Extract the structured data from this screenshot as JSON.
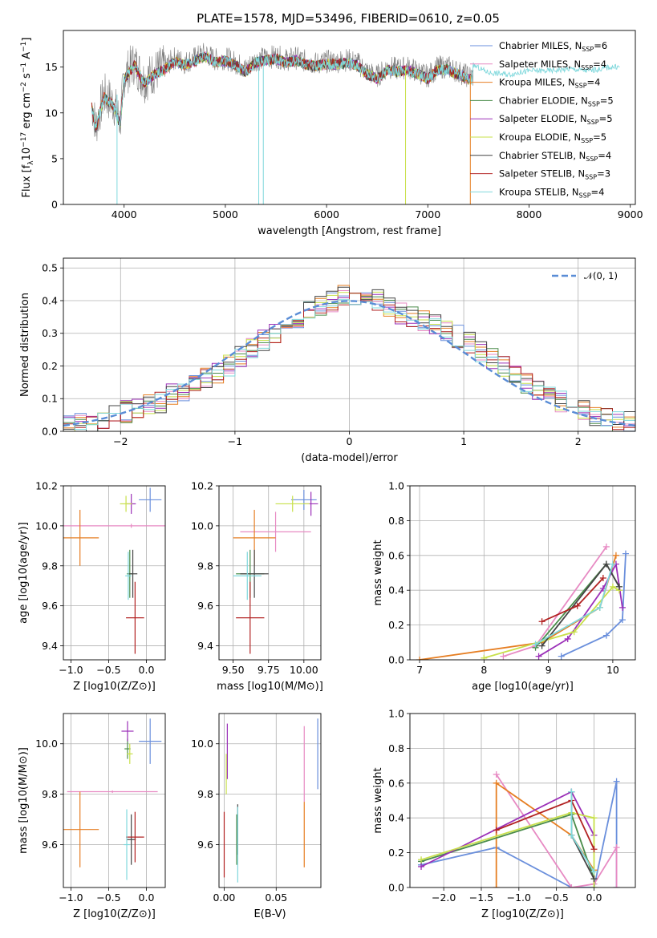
{
  "figure": {
    "title": "PLATE=1578, MJD=53496, FIBERID=0610, z=0.05"
  },
  "models": [
    {
      "name": "Chabrier MILES",
      "nssp": "6",
      "color": "#6a8fdc"
    },
    {
      "name": "Salpeter MILES",
      "nssp": "4",
      "color": "#e78ac3"
    },
    {
      "name": "Kroupa MILES",
      "nssp": "4",
      "color": "#e67e22"
    },
    {
      "name": "Chabrier ELODIE",
      "nssp": "5",
      "color": "#4a8c4a"
    },
    {
      "name": "Salpeter ELODIE",
      "nssp": "5",
      "color": "#9b30b8"
    },
    {
      "name": "Kroupa ELODIE",
      "nssp": "5",
      "color": "#c8e04a"
    },
    {
      "name": "Chabrier STELIB",
      "nssp": "4",
      "color": "#444444"
    },
    {
      "name": "Salpeter STELIB",
      "nssp": "3",
      "color": "#b22222"
    },
    {
      "name": "Kroupa STELIB",
      "nssp": "4",
      "color": "#7fd8dc"
    }
  ],
  "legend_ssp_prefix": "N",
  "legend_ssp_sub": "SSP",
  "chart_data": [
    {
      "id": "spectrum",
      "type": "line",
      "xlabel": "wavelength [Angstrom, rest frame]",
      "ylabel_main": "Flux [f",
      "ylabel_sub": "λ",
      "ylabel_rest": "10",
      "ylabel_exp": "−17",
      "ylabel_units": " erg cm",
      "ylabel_exp2": "−2",
      "ylabel_s": " s",
      "ylabel_exp3": "−1",
      "ylabel_A": " A",
      "ylabel_exp4": "−1",
      "ylabel_end": "]",
      "xlim": [
        3400,
        9050
      ],
      "ylim": [
        0,
        19
      ],
      "xticks": [
        4000,
        5000,
        6000,
        7000,
        8000,
        9000
      ],
      "yticks": [
        0,
        5,
        10,
        15
      ],
      "data_color": "#808080",
      "x": [
        3680,
        3720,
        3800,
        3900,
        3960,
        4000,
        4100,
        4200,
        4300,
        4400,
        4500,
        4600,
        4700,
        4800,
        4900,
        5000,
        5100,
        5200,
        5300,
        5400,
        5500,
        5600,
        5700,
        5800,
        5900,
        6000,
        6100,
        6200,
        6300,
        6400,
        6500,
        6600,
        6700,
        6800,
        6900,
        7000,
        7100,
        7200,
        7300,
        7400
      ],
      "y": [
        11.0,
        8.5,
        12.0,
        11.0,
        9.0,
        14.0,
        15.5,
        13.5,
        14.5,
        15.0,
        16.0,
        15.5,
        16.0,
        16.5,
        15.8,
        16.0,
        15.5,
        14.8,
        15.8,
        16.0,
        16.2,
        15.8,
        16.0,
        15.6,
        15.4,
        15.6,
        15.6,
        15.8,
        15.5,
        14.5,
        14.0,
        15.0,
        14.8,
        15.0,
        14.5,
        14.0,
        15.0,
        15.0,
        14.5,
        14.0
      ],
      "model_x": [
        7450,
        7600,
        7800,
        8000,
        8200,
        8400,
        8600,
        8800
      ],
      "model_y": [
        15.2,
        14.4,
        14.2,
        14.6,
        14.6,
        14.8,
        14.6,
        15.0
      ]
    },
    {
      "id": "residuals",
      "type": "step",
      "xlabel": "(data-model)/error",
      "ylabel": "Normed distribution",
      "xlim": [
        -2.5,
        2.5
      ],
      "ylim": [
        0,
        0.53
      ],
      "xticks": [
        -2,
        -1,
        0,
        1,
        2
      ],
      "yticks": [
        0.0,
        0.1,
        0.2,
        0.3,
        0.4,
        0.5
      ],
      "bin_edges": [
        -2.5,
        -2.4,
        -2.3,
        -2.2,
        -2.1,
        -2.0,
        -1.9,
        -1.8,
        -1.7,
        -1.6,
        -1.5,
        -1.4,
        -1.3,
        -1.2,
        -1.1,
        -1.0,
        -0.9,
        -0.8,
        -0.7,
        -0.6,
        -0.5,
        -0.4,
        -0.3,
        -0.2,
        -0.1,
        0.0,
        0.1,
        0.2,
        0.3,
        0.4,
        0.5,
        0.6,
        0.7,
        0.8,
        0.9,
        1.0,
        1.1,
        1.2,
        1.3,
        1.4,
        1.5,
        1.6,
        1.7,
        1.8,
        1.9,
        2.0,
        2.1,
        2.2,
        2.3,
        2.4,
        2.5
      ],
      "base_values": [
        0.02,
        0.025,
        0.03,
        0.04,
        0.05,
        0.06,
        0.065,
        0.08,
        0.09,
        0.11,
        0.12,
        0.14,
        0.16,
        0.18,
        0.2,
        0.23,
        0.26,
        0.28,
        0.3,
        0.33,
        0.35,
        0.37,
        0.39,
        0.4,
        0.42,
        0.41,
        0.42,
        0.4,
        0.38,
        0.36,
        0.35,
        0.34,
        0.33,
        0.31,
        0.29,
        0.27,
        0.24,
        0.22,
        0.2,
        0.17,
        0.15,
        0.13,
        0.11,
        0.09,
        0.08,
        0.06,
        0.05,
        0.04,
        0.03,
        0.03
      ],
      "gaussian_label": "𝒩(0, 1)",
      "gaussian_color": "#5a8dd6"
    },
    {
      "id": "age-vs-Z",
      "type": "errorbar",
      "xlabel": "Z [log10(Z/Z⊙)]",
      "ylabel": "age  [log10(age/yr)]",
      "xlim": [
        -1.1,
        0.25
      ],
      "ylim": [
        9.33,
        10.2
      ],
      "xticks": [
        -1.0,
        -0.5,
        0.0
      ],
      "yticks": [
        9.4,
        9.6,
        9.8,
        10.0,
        10.2
      ],
      "points": [
        {
          "model": 0,
          "x": 0.05,
          "y": 10.13,
          "xerr": 0.15,
          "yerr": 0.06
        },
        {
          "model": 1,
          "x": -0.2,
          "y": 10.0,
          "xerr": 1.0,
          "yerr": 0.01
        },
        {
          "model": 2,
          "x": -0.88,
          "y": 9.94,
          "xerr": 0.25,
          "yerr": 0.14
        },
        {
          "model": 3,
          "x": -0.22,
          "y": 9.76,
          "xerr": 0.04,
          "yerr": 0.12
        },
        {
          "model": 4,
          "x": -0.2,
          "y": 10.11,
          "xerr": 0.06,
          "yerr": 0.05
        },
        {
          "model": 5,
          "x": -0.27,
          "y": 10.11,
          "xerr": 0.08,
          "yerr": 0.04
        },
        {
          "model": 6,
          "x": -0.18,
          "y": 9.76,
          "xerr": 0.06,
          "yerr": 0.12
        },
        {
          "model": 7,
          "x": -0.15,
          "y": 9.54,
          "xerr": 0.12,
          "yerr": 0.18
        },
        {
          "model": 8,
          "x": -0.24,
          "y": 9.75,
          "xerr": 0.04,
          "yerr": 0.12
        }
      ]
    },
    {
      "id": "age-vs-mass",
      "type": "errorbar",
      "xlabel": "mass [log10(M/M⊙)]",
      "ylabel": "",
      "xlim": [
        9.4,
        10.12
      ],
      "ylim": [
        9.33,
        10.2
      ],
      "xticks": [
        9.5,
        9.75,
        10.0
      ],
      "yticks": [
        9.4,
        9.6,
        9.8,
        10.0,
        10.2
      ],
      "points": [
        {
          "model": 0,
          "x": 10.0,
          "y": 10.13,
          "xerr": 0.09,
          "yerr": 0.05
        },
        {
          "model": 1,
          "x": 9.8,
          "y": 9.97,
          "xerr": 0.25,
          "yerr": 0.1
        },
        {
          "model": 2,
          "x": 9.65,
          "y": 9.94,
          "xerr": 0.15,
          "yerr": 0.14
        },
        {
          "model": 3,
          "x": 9.62,
          "y": 9.76,
          "xerr": 0.1,
          "yerr": 0.12
        },
        {
          "model": 4,
          "x": 10.05,
          "y": 10.11,
          "xerr": 0.05,
          "yerr": 0.06
        },
        {
          "model": 5,
          "x": 9.92,
          "y": 10.11,
          "xerr": 0.12,
          "yerr": 0.04
        },
        {
          "model": 6,
          "x": 9.65,
          "y": 9.76,
          "xerr": 0.1,
          "yerr": 0.12
        },
        {
          "model": 7,
          "x": 9.62,
          "y": 9.54,
          "xerr": 0.1,
          "yerr": 0.18
        },
        {
          "model": 8,
          "x": 9.6,
          "y": 9.75,
          "xerr": 0.1,
          "yerr": 0.12
        }
      ]
    },
    {
      "id": "weight-vs-age",
      "type": "line",
      "xlabel": "age  [log10(age/yr)]",
      "ylabel": "mass weight",
      "xlim": [
        6.85,
        10.35
      ],
      "ylim": [
        0,
        1
      ],
      "xticks": [
        7,
        8,
        9,
        10
      ],
      "yticks": [
        0.0,
        0.2,
        0.4,
        0.6,
        0.8,
        1.0
      ],
      "series": [
        {
          "model": 0,
          "x": [
            9.2,
            9.9,
            10.15,
            10.2
          ],
          "y": [
            0.02,
            0.14,
            0.23,
            0.61
          ]
        },
        {
          "model": 1,
          "x": [
            8.3,
            8.8,
            9.9
          ],
          "y": [
            0.02,
            0.08,
            0.65
          ]
        },
        {
          "model": 2,
          "x": [
            7.0,
            8.9,
            9.8,
            10.05
          ],
          "y": [
            0.0,
            0.1,
            0.3,
            0.6
          ]
        },
        {
          "model": 3,
          "x": [
            8.8,
            9.9,
            10.1
          ],
          "y": [
            0.07,
            0.55,
            0.42
          ]
        },
        {
          "model": 4,
          "x": [
            8.85,
            9.3,
            9.85,
            10.05,
            10.15
          ],
          "y": [
            0.02,
            0.12,
            0.41,
            0.55,
            0.3
          ]
        },
        {
          "model": 5,
          "x": [
            8.0,
            9.4,
            10.0,
            10.1
          ],
          "y": [
            0.01,
            0.16,
            0.42,
            0.4
          ]
        },
        {
          "model": 6,
          "x": [
            8.9,
            9.9,
            10.1
          ],
          "y": [
            0.08,
            0.55,
            0.42
          ]
        },
        {
          "model": 7,
          "x": [
            8.9,
            9.45,
            9.85
          ],
          "y": [
            0.22,
            0.31,
            0.47
          ]
        },
        {
          "model": 8,
          "x": [
            8.8,
            9.8,
            10.0
          ],
          "y": [
            0.09,
            0.3,
            0.55
          ]
        }
      ]
    },
    {
      "id": "mass-vs-Z",
      "type": "errorbar",
      "xlabel": "Z [log10(Z/Z⊙)]",
      "ylabel": "mass [log10(M/M⊙)]",
      "xlim": [
        -1.1,
        0.25
      ],
      "ylim": [
        9.43,
        10.12
      ],
      "xticks": [
        -1.0,
        -0.5,
        0.0
      ],
      "yticks": [
        9.6,
        9.8,
        10.0
      ],
      "points": [
        {
          "model": 0,
          "x": 0.05,
          "y": 10.01,
          "xerr": 0.15,
          "yerr": 0.09
        },
        {
          "model": 1,
          "x": -0.45,
          "y": 9.81,
          "xerr": 0.6,
          "yerr": 0.005
        },
        {
          "model": 2,
          "x": -0.88,
          "y": 9.66,
          "xerr": 0.25,
          "yerr": 0.15
        },
        {
          "model": 3,
          "x": -0.25,
          "y": 9.98,
          "xerr": 0.04,
          "yerr": 0.04
        },
        {
          "model": 4,
          "x": -0.25,
          "y": 10.05,
          "xerr": 0.08,
          "yerr": 0.04
        },
        {
          "model": 5,
          "x": -0.22,
          "y": 9.96,
          "xerr": 0.04,
          "yerr": 0.04
        },
        {
          "model": 6,
          "x": -0.2,
          "y": 9.62,
          "xerr": 0.06,
          "yerr": 0.1
        },
        {
          "model": 7,
          "x": -0.15,
          "y": 9.63,
          "xerr": 0.12,
          "yerr": 0.1
        },
        {
          "model": 8,
          "x": -0.26,
          "y": 9.6,
          "xerr": 0.04,
          "yerr": 0.14
        }
      ]
    },
    {
      "id": "mass-vs-EBV",
      "type": "errorbar",
      "xlabel": "E(B-V)",
      "ylabel": "",
      "xlim": [
        -0.005,
        0.093
      ],
      "ylim": [
        9.43,
        10.12
      ],
      "xticks": [
        0.0,
        0.05
      ],
      "yticks": [
        9.6,
        9.8,
        10.0
      ],
      "points": [
        {
          "model": 0,
          "x": 0.09,
          "y": 9.96,
          "xerr": 0.0,
          "yerr": 0.14
        },
        {
          "model": 1,
          "x": 0.077,
          "y": 9.92,
          "xerr": 0.0,
          "yerr": 0.15
        },
        {
          "model": 2,
          "x": 0.077,
          "y": 9.64,
          "xerr": 0.0,
          "yerr": 0.13
        },
        {
          "model": 3,
          "x": 0.012,
          "y": 9.62,
          "xerr": 0.0,
          "yerr": 0.1
        },
        {
          "model": 4,
          "x": 0.003,
          "y": 9.97,
          "xerr": 0.0,
          "yerr": 0.11
        },
        {
          "model": 5,
          "x": 0.002,
          "y": 9.88,
          "xerr": 0.0,
          "yerr": 0.08
        },
        {
          "model": 6,
          "x": 0.013,
          "y": 9.66,
          "xerr": 0.0,
          "yerr": 0.1
        },
        {
          "model": 7,
          "x": 0.0,
          "y": 9.6,
          "xerr": 0.0,
          "yerr": 0.13
        },
        {
          "model": 8,
          "x": 0.013,
          "y": 9.6,
          "xerr": 0.0,
          "yerr": 0.15
        }
      ]
    },
    {
      "id": "weight-vs-Z",
      "type": "line",
      "xlabel": "Z [log10(Z/Z⊙)]",
      "ylabel": "mass weight",
      "xlim": [
        -2.45,
        0.55
      ],
      "ylim": [
        0,
        1
      ],
      "xticks": [
        -2.0,
        -1.5,
        -1.0,
        -0.5,
        0.0
      ],
      "yticks": [
        0.0,
        0.2,
        0.4,
        0.6,
        0.8,
        1.0
      ],
      "series": [
        {
          "model": 0,
          "x": [
            -2.3,
            -1.3,
            -0.3,
            0.0,
            0.3,
            0.3
          ],
          "y": [
            0.13,
            0.23,
            0.0,
            0.0,
            0.61,
            0.0
          ]
        },
        {
          "model": 1,
          "x": [
            -1.3,
            -0.3,
            0.0,
            0.3,
            0.3
          ],
          "y": [
            0.65,
            0.0,
            0.02,
            0.23,
            0.0
          ]
        },
        {
          "model": 2,
          "x": [
            -1.3,
            -1.3,
            -0.3,
            0.0
          ],
          "y": [
            0.0,
            0.6,
            0.3,
            0.1
          ]
        },
        {
          "model": 3,
          "x": [
            -2.3,
            -0.3,
            0.0
          ],
          "y": [
            0.15,
            0.42,
            0.05
          ]
        },
        {
          "model": 4,
          "x": [
            -2.3,
            -0.3,
            0.0
          ],
          "y": [
            0.12,
            0.55,
            0.3
          ]
        },
        {
          "model": 5,
          "x": [
            -2.3,
            -0.3,
            0.0,
            0.0
          ],
          "y": [
            0.16,
            0.43,
            0.4,
            0.0
          ]
        },
        {
          "model": 6,
          "x": [
            -0.3,
            -0.3,
            0.0
          ],
          "y": [
            0.55,
            0.3,
            0.05
          ]
        },
        {
          "model": 7,
          "x": [
            -1.3,
            -0.3,
            0.0
          ],
          "y": [
            0.33,
            0.5,
            0.22
          ]
        },
        {
          "model": 8,
          "x": [
            -0.3,
            -0.3,
            0.0
          ],
          "y": [
            0.55,
            0.3,
            0.09
          ]
        }
      ]
    }
  ]
}
